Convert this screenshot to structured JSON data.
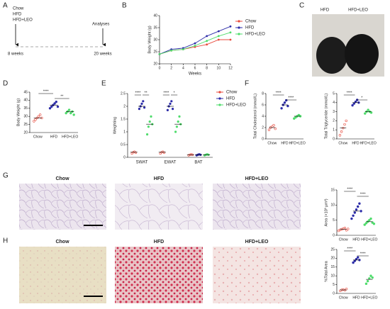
{
  "panel_labels": [
    "A",
    "B",
    "C",
    "D",
    "E",
    "F",
    "G",
    "H"
  ],
  "schematic": {
    "groups": [
      "Chow",
      "HFD",
      "HFD+LEO"
    ],
    "analyses": "Analyses",
    "start": "8 weeks",
    "end": "20 weeks"
  },
  "photo": {
    "labels": [
      "HFD",
      "HFD+LEO"
    ]
  },
  "histology": [
    {
      "columns": [
        "Chow",
        "HFD",
        "HFD+LEO"
      ]
    },
    {
      "columns": [
        "Chow",
        "HFD",
        "HFD+LEO"
      ]
    }
  ],
  "chart_data": [
    {
      "type": "line",
      "x_label": "Weeks",
      "y_label": "Body Weight (g)",
      "x": [
        0,
        2,
        4,
        6,
        8,
        10,
        12
      ],
      "xlim": [
        0,
        12
      ],
      "xticks": [
        0,
        2,
        4,
        6,
        8,
        10,
        12
      ],
      "ylim": [
        20,
        40
      ],
      "yticks": [
        20,
        25,
        30,
        35,
        40
      ],
      "series": [
        {
          "name": "Chow",
          "color": "#e84a3c",
          "values": [
            24,
            25.5,
            26,
            27,
            28,
            30,
            30
          ]
        },
        {
          "name": "HFD",
          "color": "#2c2ca8",
          "values": [
            24,
            26,
            26.5,
            28.5,
            31.5,
            33.5,
            35.5
          ]
        },
        {
          "name": "HFD+LEO",
          "color": "#4fdc6c",
          "values": [
            24,
            25.5,
            26,
            27.5,
            29.5,
            31.5,
            33
          ]
        }
      ]
    },
    {
      "type": "dot",
      "y_label": "Body Weight (g)",
      "categories": [
        "Chow",
        "HFD",
        "HFD+LEO"
      ],
      "colors": [
        "#e84a3c",
        "#2c2ca8",
        "#4fdc6c"
      ],
      "means": [
        29,
        37,
        33
      ],
      "points": [
        [
          27,
          28,
          29,
          30,
          31,
          29
        ],
        [
          35,
          36,
          37,
          38,
          39,
          36
        ],
        [
          32,
          33,
          34,
          32,
          33,
          31
        ]
      ],
      "ylim": [
        20,
        45
      ],
      "yticks": [
        20,
        25,
        30,
        35,
        40,
        45
      ],
      "annotations": [
        "****",
        "**"
      ]
    },
    {
      "type": "grouped-dot",
      "y_label": "Weighting",
      "categories": [
        "SWAT",
        "EWAT",
        "BAT"
      ],
      "ylim": [
        0,
        2.5
      ],
      "yticks": [
        0,
        0.5,
        1,
        1.5,
        2,
        2.5
      ],
      "annotations": [
        [
          "****",
          "**"
        ],
        [
          "****",
          "*"
        ],
        []
      ],
      "series": [
        {
          "name": "Chow",
          "color": "#e84a3c",
          "values": [
            0.2,
            0.2,
            0.1
          ],
          "points": [
            [
              0.15,
              0.2,
              0.22,
              0.18
            ],
            [
              0.15,
              0.2,
              0.22,
              0.18
            ],
            [
              0.08,
              0.1,
              0.12,
              0.1
            ]
          ]
        },
        {
          "name": "HFD",
          "color": "#2c2ca8",
          "values": [
            2.0,
            2.0,
            0.1
          ],
          "points": [
            [
              1.9,
              2.0,
              2.1,
              2.2,
              1.95
            ],
            [
              1.85,
              2.0,
              2.1,
              2.2,
              1.9
            ],
            [
              0.08,
              0.1,
              0.12,
              0.1
            ]
          ]
        },
        {
          "name": "HFD+LEO",
          "color": "#4fdc6c",
          "values": [
            1.3,
            1.3,
            0.1
          ],
          "points": [
            [
              0.9,
              1.2,
              1.4,
              1.6,
              1.3
            ],
            [
              1.0,
              1.2,
              1.4,
              1.6,
              1.3
            ],
            [
              0.08,
              0.1,
              0.12,
              0.1
            ]
          ]
        }
      ]
    },
    {
      "type": "dot",
      "y_label": "Total Cholesterol (mmol/L)",
      "categories": [
        "Chow",
        "HFD",
        "HFD+LEO"
      ],
      "colors": [
        "#e84a3c",
        "#2c2ca8",
        "#4fdc6c"
      ],
      "means": [
        2,
        6,
        4
      ],
      "points": [
        [
          1.6,
          2.0,
          2.2,
          2.4,
          1.8
        ],
        [
          5.4,
          6.0,
          6.4,
          6.8,
          5.8
        ],
        [
          3.6,
          3.8,
          4.0,
          4.2,
          4.0
        ]
      ],
      "ylim": [
        0,
        8
      ],
      "yticks": [
        0,
        2,
        4,
        6,
        8
      ],
      "annotations": [
        "****",
        "****"
      ]
    },
    {
      "type": "dot",
      "y_label": "Total Triglyceride (mmol/L)",
      "categories": [
        "Chow",
        "HFD",
        "HFD+LEO"
      ],
      "colors": [
        "#e84a3c",
        "#2c2ca8",
        "#4fdc6c"
      ],
      "means": [
        1.2,
        4,
        3
      ],
      "points": [
        [
          0.4,
          0.8,
          1.2,
          1.6,
          2.0
        ],
        [
          3.7,
          3.9,
          4.1,
          4.3,
          4.0
        ],
        [
          2.8,
          3.0,
          3.2,
          3.0,
          2.9
        ]
      ],
      "ylim": [
        0,
        5
      ],
      "yticks": [
        0,
        1,
        2,
        3,
        4,
        5
      ],
      "annotations": [
        "****",
        "*"
      ]
    },
    {
      "type": "dot",
      "y_label": "Area (×10³ μm²)",
      "categories": [
        "Chow",
        "HFD",
        "HFD+LEO"
      ],
      "colors": [
        "#e84a3c",
        "#2c2ca8",
        "#4fdc6c"
      ],
      "means": [
        2,
        8,
        4.5
      ],
      "points": [
        [
          1.5,
          1.8,
          2.0,
          2.2,
          2.4,
          1.7,
          2.1
        ],
        [
          5.5,
          6.5,
          7.5,
          8.5,
          9.5,
          10.5,
          8.0
        ],
        [
          3.5,
          4.0,
          4.5,
          5.0,
          5.5,
          4.2,
          3.8
        ]
      ],
      "ylim": [
        0,
        15
      ],
      "yticks": [
        0,
        5,
        10,
        15
      ],
      "annotations": [
        "****",
        "****"
      ]
    },
    {
      "type": "dot",
      "y_label": "%Total Area",
      "categories": [
        "Chow",
        "HFD",
        "HFD+LEO"
      ],
      "colors": [
        "#e84a3c",
        "#2c2ca8",
        "#4fdc6c"
      ],
      "means": [
        2,
        19,
        8
      ],
      "points": [
        [
          1.5,
          2.0,
          2.2,
          1.8,
          2.5
        ],
        [
          17.5,
          18.5,
          19.5,
          20.5,
          19.0
        ],
        [
          5.5,
          7.0,
          8.5,
          10.0,
          9.0
        ]
      ],
      "ylim": [
        0,
        25
      ],
      "yticks": [
        0,
        5,
        10,
        15,
        20,
        25
      ],
      "annotations": [
        "****",
        "****"
      ]
    }
  ]
}
